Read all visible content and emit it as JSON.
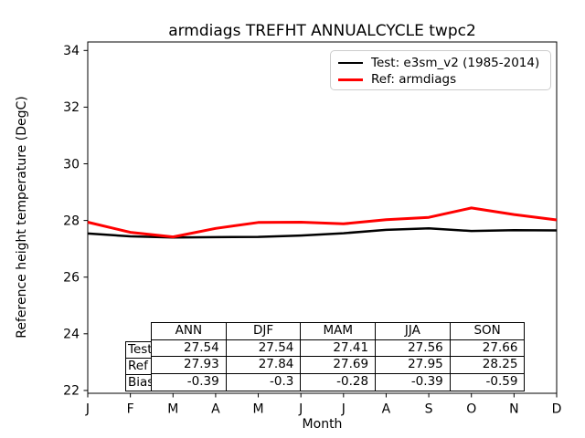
{
  "title": "armdiags TREFHT ANNUALCYCLE twpc2",
  "axes": {
    "ylabel": "Reference height temperature (DegC)",
    "xlabel": "Month",
    "yticks": [
      22,
      24,
      26,
      28,
      30,
      32,
      34
    ],
    "xticklabels": [
      "J",
      "F",
      "M",
      "A",
      "M",
      "J",
      "J",
      "A",
      "S",
      "O",
      "N",
      "D"
    ],
    "ylim": [
      21.9,
      34.3
    ]
  },
  "legend": {
    "items": [
      {
        "name": "test-series",
        "label": "Test: e3sm_v2 (1985-2014)",
        "color": "#000000"
      },
      {
        "name": "ref-series",
        "label": "Ref: armdiags",
        "color": "#ff0000"
      }
    ]
  },
  "chart_data": {
    "type": "line",
    "title": "armdiags TREFHT ANNUALCYCLE twpc2",
    "xlabel": "Month",
    "ylabel": "Reference height temperature (DegC)",
    "x": [
      "J",
      "F",
      "M",
      "A",
      "M",
      "J",
      "J",
      "A",
      "S",
      "O",
      "N",
      "D"
    ],
    "ylim": [
      21.9,
      34.3
    ],
    "grid": false,
    "legend_position": "upper right",
    "series": [
      {
        "name": "Test: e3sm_v2 (1985-2014)",
        "color": "#000000",
        "values": [
          27.54,
          27.44,
          27.4,
          27.41,
          27.42,
          27.47,
          27.55,
          27.67,
          27.72,
          27.63,
          27.66,
          27.65
        ]
      },
      {
        "name": "Ref: armdiags",
        "color": "#ff0000",
        "values": [
          27.94,
          27.58,
          27.42,
          27.72,
          27.93,
          27.94,
          27.88,
          28.03,
          28.11,
          28.44,
          28.21,
          28.02
        ]
      }
    ]
  },
  "table": {
    "columns": [
      "ANN",
      "DJF",
      "MAM",
      "JJA",
      "SON"
    ],
    "rows": [
      {
        "label": "Test",
        "values": [
          "27.54",
          "27.54",
          "27.41",
          "27.56",
          "27.66"
        ]
      },
      {
        "label": "Ref",
        "values": [
          "27.93",
          "27.84",
          "27.69",
          "27.95",
          "28.25"
        ]
      },
      {
        "label": "Bias",
        "values": [
          "-0.39",
          "-0.3",
          "-0.28",
          "-0.39",
          "-0.59"
        ]
      }
    ]
  }
}
